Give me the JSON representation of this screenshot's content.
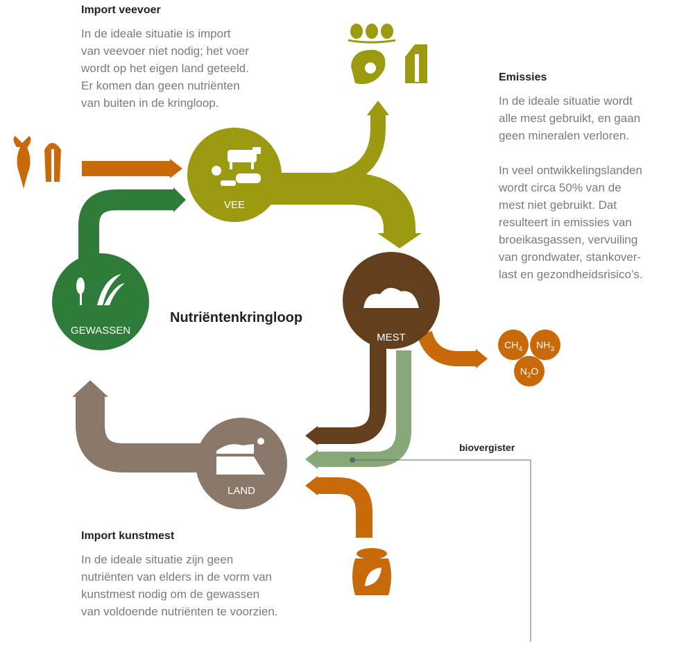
{
  "center_title": "Nutriëntenkringloop",
  "import_feed": {
    "title": "Import veevoer",
    "lines": [
      "In de ideale situatie is import",
      "van veevoer niet nodig; het voer",
      "wordt op het eigen land geteeld.",
      "Er komen dan geen nutriënten",
      "van buiten in de kringloop."
    ]
  },
  "emissions": {
    "title": "Emissies",
    "paragraph1": [
      "In de ideale situatie wordt",
      "alle mest gebruikt, en gaan",
      "geen mineralen verloren."
    ],
    "paragraph2": [
      "In veel ontwikkelingslanden",
      "wordt circa 50% van de",
      "mest niet gebruikt. Dat",
      "resulteert in emissies van",
      "broeikasgassen, vervuiling",
      "van grondwater, stankover-",
      "last en gezondheidsrisico’s."
    ]
  },
  "import_fertilizer": {
    "title": "Import kunstmest",
    "lines": [
      "In de ideale situatie zijn geen",
      "nutriënten van elders in de vorm van",
      "kunstmest nodig om de gewassen",
      "van voldoende nutriënten te voorzien."
    ]
  },
  "nodes": {
    "livestock": "VEE",
    "manure": "MEST",
    "land": "LAND",
    "crops": "GEWASSEN"
  },
  "gases": [
    {
      "formula": "CH",
      "sub": "4"
    },
    {
      "formula": "NH",
      "sub": "3"
    },
    {
      "formula": "N",
      "sub": "2",
      "tail": "O"
    }
  ],
  "digester_label": "biovergister"
}
